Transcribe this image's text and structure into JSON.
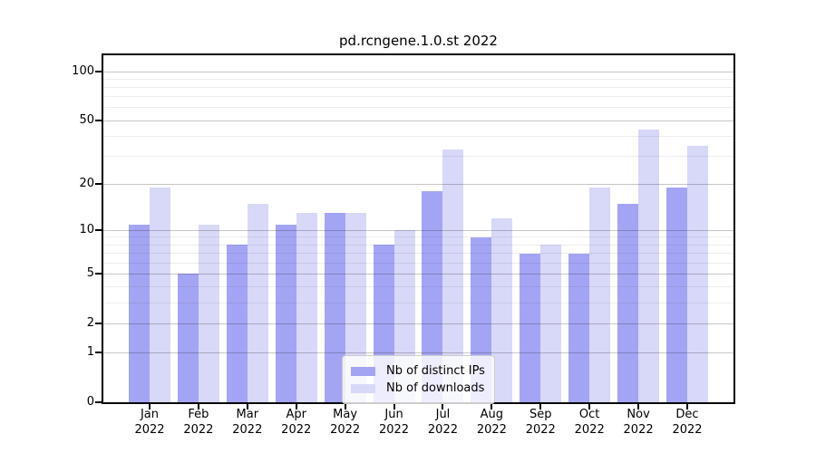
{
  "chart_data": {
    "type": "bar",
    "title": "pd.rcngene.1.0.st 2022",
    "categories": [
      "Jan",
      "Feb",
      "Mar",
      "Apr",
      "May",
      "Jun",
      "Jul",
      "Aug",
      "Sep",
      "Oct",
      "Nov",
      "Dec"
    ],
    "x_year_label": "2022",
    "series": [
      {
        "name": "Nb of distinct IPs",
        "color": "#a4a4f4",
        "values": [
          11,
          5,
          8,
          11,
          13,
          8,
          18,
          9,
          7,
          7,
          15,
          19
        ]
      },
      {
        "name": "Nb of downloads",
        "color": "#d8d8f8",
        "values": [
          19,
          11,
          15,
          13,
          13,
          10,
          33,
          12,
          8,
          19,
          44,
          35
        ]
      }
    ],
    "yscale": "log10(value+1)",
    "ylim": [
      0,
      126
    ],
    "y_tick_labels": [
      "100",
      "50",
      "20",
      "10",
      "5",
      "2",
      "1",
      "0"
    ],
    "y_tick_values": [
      100,
      50,
      20,
      10,
      5,
      2,
      1,
      0
    ],
    "y_major_gridlines": [
      1,
      2,
      5,
      10,
      20,
      50,
      100
    ],
    "y_minor_gridlines": [
      3,
      4,
      6,
      7,
      8,
      9,
      30,
      40,
      60,
      70,
      80,
      90
    ],
    "grid": true,
    "legend_position": "lower center"
  }
}
